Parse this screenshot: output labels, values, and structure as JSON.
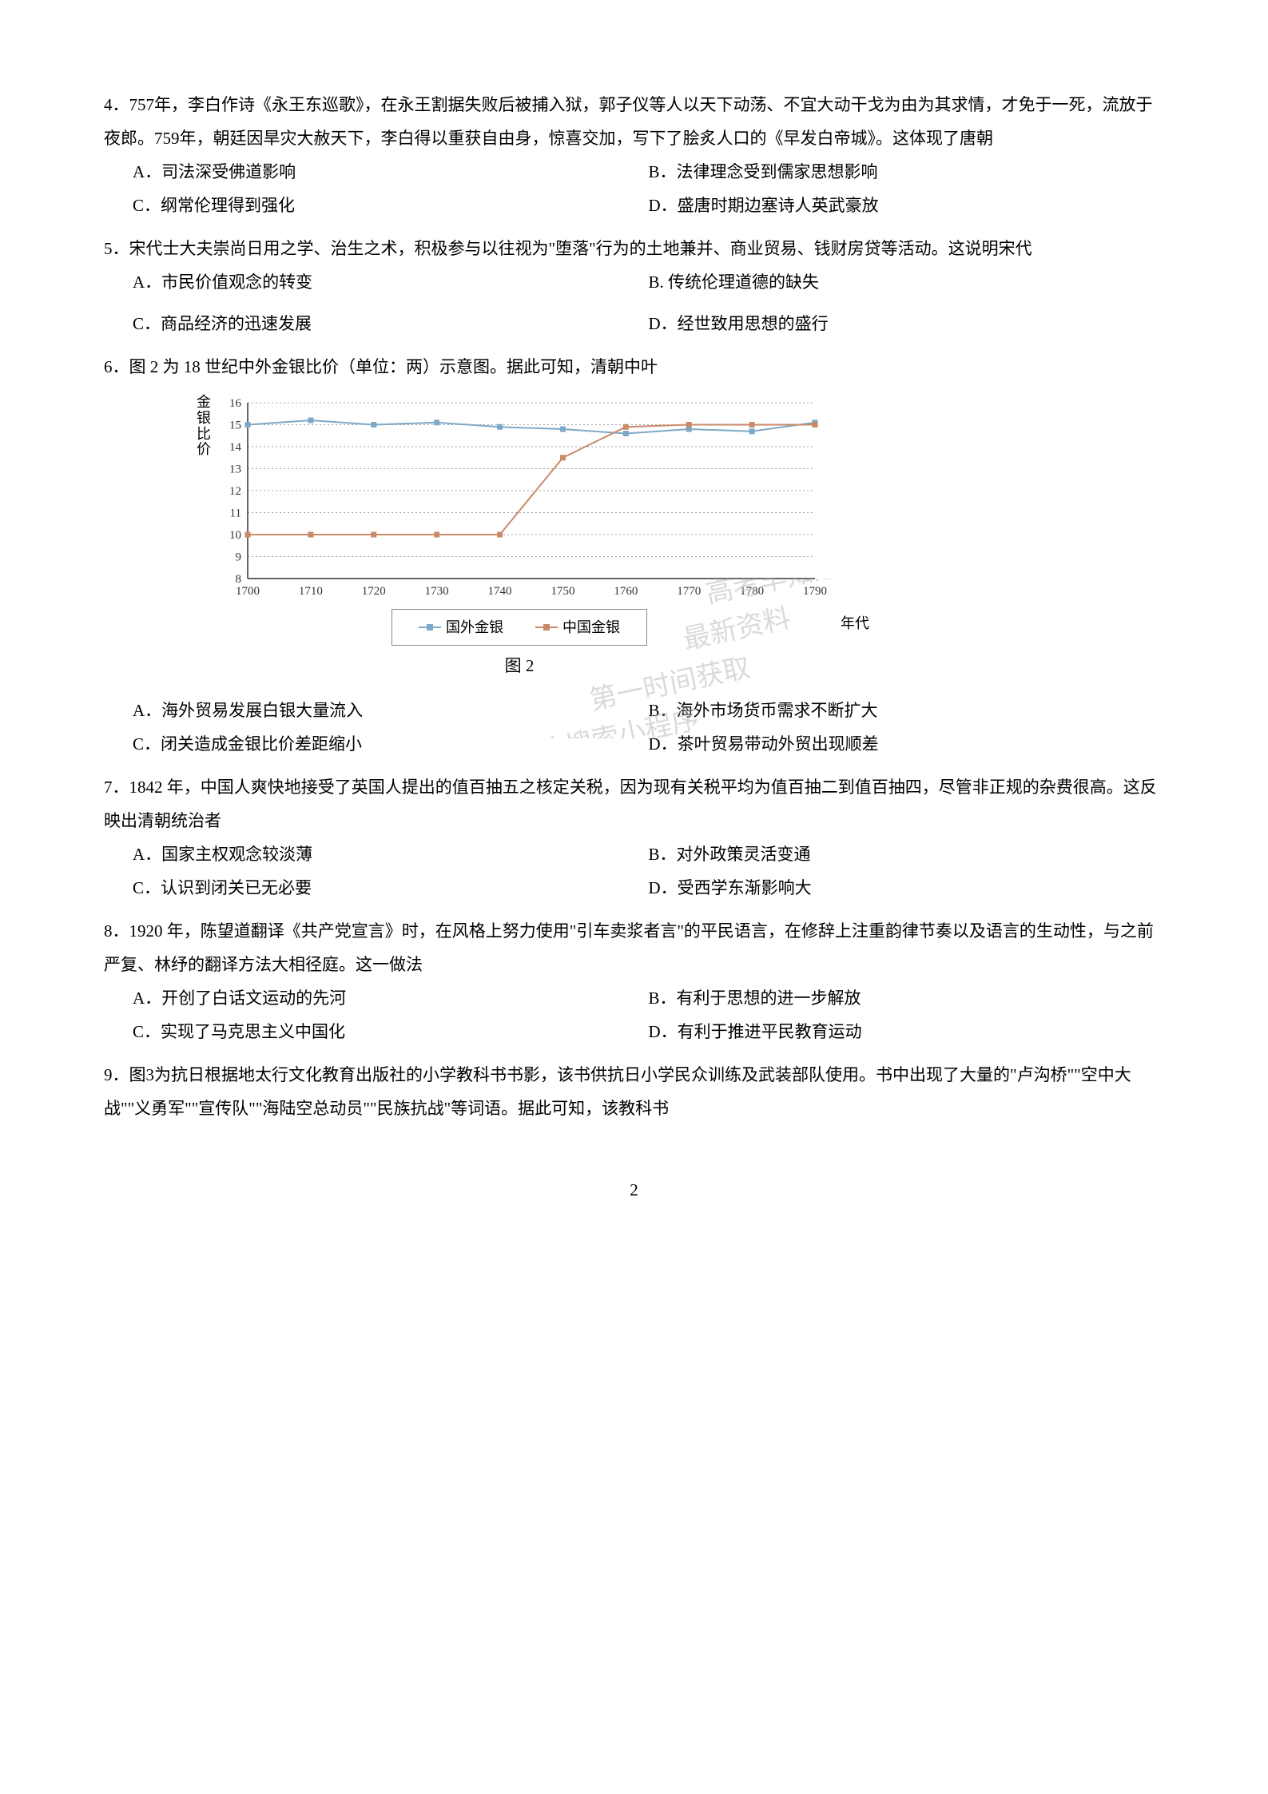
{
  "q4": {
    "text": "4．757年，李白作诗《永王东巡歌》，在永王割据失败后被捕入狱，郭子仪等人以天下动荡、不宜大动干戈为由为其求情，才免于一死，流放于夜郎。759年，朝廷因旱灾大赦天下，李白得以重获自由身，惊喜交加，写下了脍炙人口的《早发白帝城》。这体现了唐朝",
    "A": "A．司法深受佛道影响",
    "B": "B．法律理念受到儒家思想影响",
    "C": "C．纲常伦理得到强化",
    "D": "D．盛唐时期边塞诗人英武豪放"
  },
  "q5": {
    "text": "5．宋代士大夫崇尚日用之学、治生之术，积极参与以往视为\"堕落\"行为的土地兼并、商业贸易、钱财房贷等活动。这说明宋代",
    "A": "A．市民价值观念的转变",
    "B": "B.  传统伦理道德的缺失",
    "C": "C．商品经济的迅速发展",
    "D": "D．经世致用思想的盛行"
  },
  "q6": {
    "text": "6．图 2 为 18 世纪中外金银比价（单位：两）示意图。据此可知，清朝中叶",
    "A": "A．海外贸易发展白银大量流入",
    "B": "B．海外市场货币需求不断扩大",
    "C": "C．闭关造成金银比价差距缩小",
    "D": "D．茶叶贸易带动外贸出现顺差",
    "chart": {
      "type": "line",
      "ylabel": "金银比价",
      "xlabel": "年代",
      "caption": "图 2",
      "x_values": [
        1700,
        1710,
        1720,
        1730,
        1740,
        1750,
        1760,
        1770,
        1780,
        1790
      ],
      "y_min": 8,
      "y_max": 16,
      "y_tick_step": 1,
      "series": [
        {
          "name": "国外金银",
          "color": "#7da9c7",
          "marker": "square",
          "values": [
            15.0,
            15.2,
            15.0,
            15.1,
            14.9,
            14.8,
            14.6,
            14.8,
            14.7,
            15.1
          ]
        },
        {
          "name": "中国金银",
          "color": "#c98a6a",
          "marker": "square",
          "values": [
            10.0,
            10.0,
            10.0,
            10.0,
            10.0,
            13.5,
            14.9,
            15.0,
            15.0,
            15.0
          ]
        }
      ],
      "legend": [
        "国外金银",
        "中国金银"
      ],
      "grid_color": "#a0a0a0",
      "background_color": "#ffffff",
      "line_width": 2,
      "marker_size": 7,
      "axis_fontsize": 15,
      "label_fontsize": 18
    }
  },
  "q7": {
    "text": "7．1842 年，中国人爽快地接受了英国人提出的值百抽五之核定关税，因为现有关税平均为值百抽二到值百抽四，尽管非正规的杂费很高。这反映出清朝统治者",
    "A": "A．国家主权观念较淡薄",
    "B": "B．对外政策灵活变通",
    "C": "C．认识到闭关已无必要",
    "D": "D．受西学东渐影响大"
  },
  "q8": {
    "text": "8．1920 年，陈望道翻译《共产党宣言》时，在风格上努力使用\"引车卖浆者言\"的平民语言，在修辞上注重韵律节奏以及语言的生动性，与之前严复、林纾的翻译方法大相径庭。这一做法",
    "A": "A．开创了白话文运动的先河",
    "B": "B．有利于思想的进一步解放",
    "C": "C．实现了马克思主义中国化",
    "D": "D．有利于推进平民教育运动"
  },
  "q9": {
    "text": "9．图3为抗日根据地太行文化教育出版社的小学教科书书影，该书供抗日小学民众训练及武装部队使用。书中出现了大量的\"卢沟桥\"\"空中大战\"\"义勇军\"\"宣传队\"\"海陆空总动员\"\"民族抗战\"等词语。据此可知，该教科书"
  },
  "pageNumber": "2",
  "watermark_lines": [
    "高考早知道",
    "最新资料",
    "第一时间获取",
    "微信搜索小程序"
  ]
}
